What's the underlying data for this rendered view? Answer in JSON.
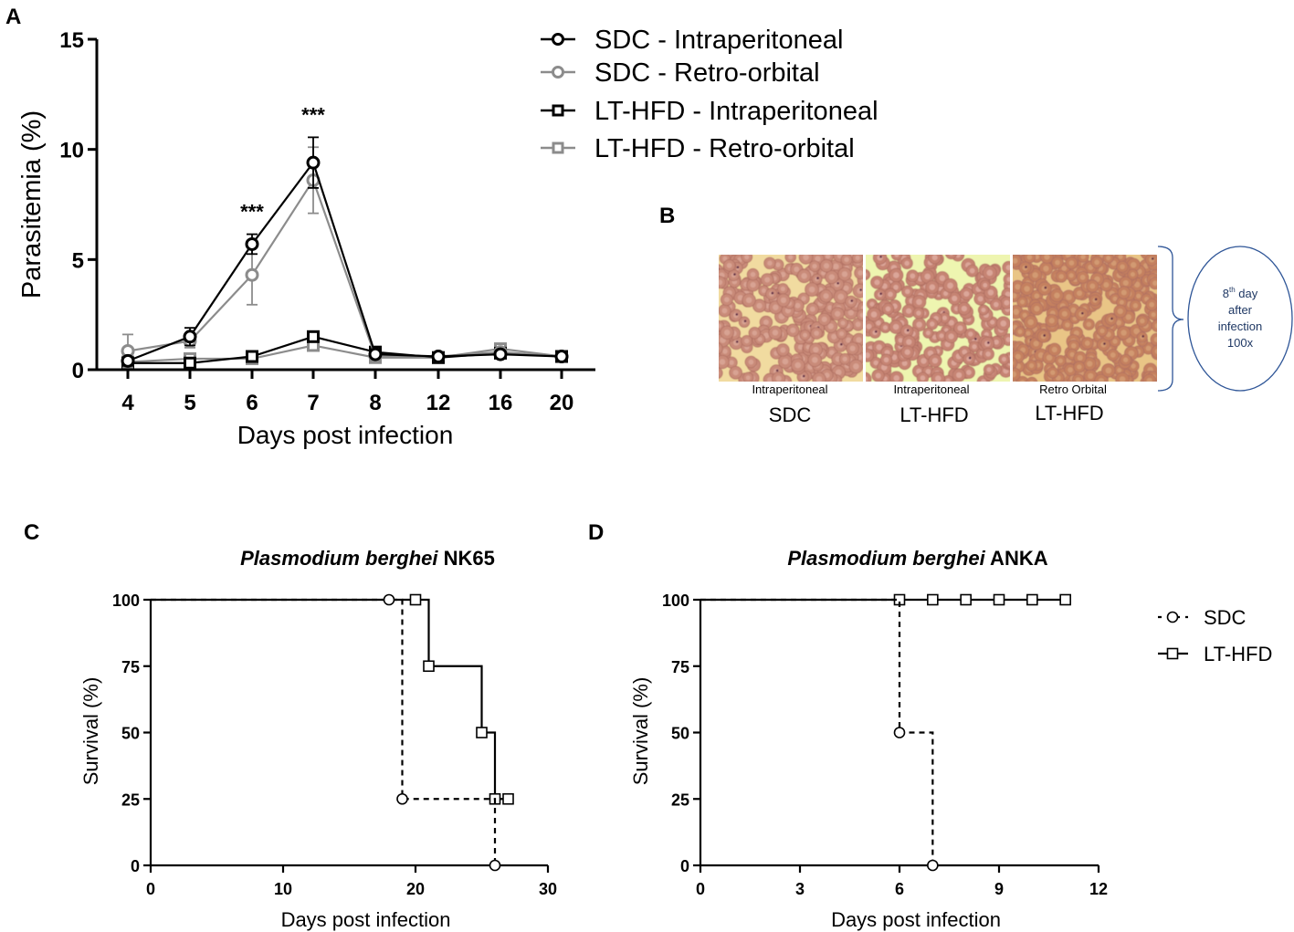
{
  "panels": {
    "a": "A",
    "b": "B",
    "c": "C",
    "d": "D"
  },
  "colors": {
    "black": "#000000",
    "gray": "#8c8c8c",
    "circle_stroke": "#2e5597",
    "circle_text": "#1f3864",
    "bracket": "#2e5597"
  },
  "chart_data": [
    {
      "id": "A",
      "type": "line",
      "categories": [
        "4",
        "5",
        "6",
        "7",
        "8",
        "12",
        "16",
        "20"
      ],
      "xlabel": "Days post infection",
      "ylabel": "Parasitemia (%)",
      "ylim": [
        0,
        15
      ],
      "yticks": [
        "0",
        "5",
        "10",
        "15"
      ],
      "series": [
        {
          "name": "SDC - Intraperitoneal",
          "color": "#000000",
          "marker": "circle",
          "values": [
            0.4,
            1.5,
            5.7,
            9.4,
            0.7,
            0.6,
            0.7,
            0.6
          ],
          "errors": [
            0.1,
            0.4,
            0.45,
            1.15,
            0.1,
            0.05,
            0.1,
            0.05
          ],
          "lastIndex": 3
        },
        {
          "name": "SDC - Retro-orbital",
          "color": "#8c8c8c",
          "marker": "circle",
          "values": [
            0.85,
            1.3,
            4.3,
            8.6,
            0.6,
            0.6,
            0.8,
            0.6
          ],
          "errors": [
            0.75,
            0.3,
            1.35,
            1.5,
            0.1,
            0.05,
            0.1,
            0.05
          ],
          "lastIndex": 3
        },
        {
          "name": "LT-HFD - Intraperitoneal",
          "color": "#000000",
          "marker": "square",
          "values": [
            0.3,
            0.3,
            0.6,
            1.5,
            0.8,
            0.55,
            0.75,
            0.6
          ],
          "errors": [
            0.05,
            0.1,
            0.1,
            0.2,
            0.1,
            0.05,
            0.1,
            0.05
          ],
          "lastIndex": 7
        },
        {
          "name": "LT-HFD - Retro-orbital",
          "color": "#8c8c8c",
          "marker": "square",
          "values": [
            0.35,
            0.5,
            0.5,
            1.1,
            0.55,
            0.55,
            0.95,
            0.6
          ],
          "errors": [
            0.05,
            0.1,
            0.1,
            0.2,
            0.1,
            0.05,
            0.1,
            0.05
          ],
          "lastIndex": 7
        }
      ],
      "annotations": [
        {
          "category": "6",
          "text": "***"
        },
        {
          "category": "7",
          "text": "***"
        }
      ]
    },
    {
      "id": "C",
      "type": "line",
      "title_italic": "Plasmodium berghei",
      "title_rest": " NK65",
      "xlabel": "Days post infection",
      "ylabel": "Survival (%)",
      "xlim": [
        0,
        30
      ],
      "ylim": [
        0,
        100
      ],
      "xticks": [
        0,
        10,
        20,
        30
      ],
      "yticks": [
        0,
        25,
        50,
        75,
        100
      ],
      "series": [
        {
          "name": "SDC",
          "style": "dashed",
          "marker": "circle",
          "steps": [
            [
              0,
              100
            ],
            [
              19,
              100
            ],
            [
              19,
              25
            ],
            [
              26,
              25
            ],
            [
              26,
              0
            ]
          ],
          "markers": [
            [
              18,
              100
            ],
            [
              19,
              25
            ],
            [
              26,
              0
            ]
          ]
        },
        {
          "name": "LT-HFD",
          "style": "solid",
          "marker": "square",
          "steps": [
            [
              0,
              100
            ],
            [
              21,
              100
            ],
            [
              21,
              75
            ],
            [
              25,
              75
            ],
            [
              25,
              50
            ],
            [
              26,
              50
            ],
            [
              26,
              25
            ],
            [
              27,
              25
            ]
          ],
          "markers": [
            [
              20,
              100
            ],
            [
              21,
              75
            ],
            [
              25,
              50
            ],
            [
              26,
              25
            ],
            [
              27,
              25
            ]
          ]
        }
      ]
    },
    {
      "id": "D",
      "type": "line",
      "title_italic": "Plasmodium berghei",
      "title_rest": " ANKA",
      "xlabel": "Days post infection",
      "ylabel": "Survival (%)",
      "xlim": [
        0,
        12
      ],
      "ylim": [
        0,
        100
      ],
      "xticks": [
        0,
        3,
        6,
        9,
        12
      ],
      "yticks": [
        0,
        25,
        50,
        75,
        100
      ],
      "legend": [
        {
          "name": "SDC"
        },
        {
          "name": "LT-HFD"
        }
      ],
      "series": [
        {
          "name": "SDC",
          "style": "dashed",
          "marker": "circle",
          "steps": [
            [
              0,
              100
            ],
            [
              6,
              100
            ],
            [
              6,
              50
            ],
            [
              7,
              50
            ],
            [
              7,
              0
            ]
          ],
          "markers": [
            [
              6,
              50
            ],
            [
              7,
              0
            ]
          ]
        },
        {
          "name": "LT-HFD",
          "style": "solid",
          "marker": "square",
          "steps": [
            [
              0,
              100
            ],
            [
              11,
              100
            ]
          ],
          "markers": [
            [
              6,
              100
            ],
            [
              7,
              100
            ],
            [
              8,
              100
            ],
            [
              9,
              100
            ],
            [
              10,
              100
            ],
            [
              11,
              100
            ]
          ]
        }
      ]
    }
  ],
  "panel_b": {
    "images": [
      {
        "route_label": "Intraperitoneal",
        "diet_label": "SDC"
      },
      {
        "route_label": "Intraperitoneal",
        "diet_label": "LT-HFD"
      },
      {
        "route_label": "Retro Orbital",
        "diet_label": "LT-HFD"
      }
    ],
    "note": {
      "day_num": "8",
      "day_sup": "th",
      "day_word": " day",
      "line2": "after",
      "line3": "infection",
      "line4": "100x"
    }
  }
}
